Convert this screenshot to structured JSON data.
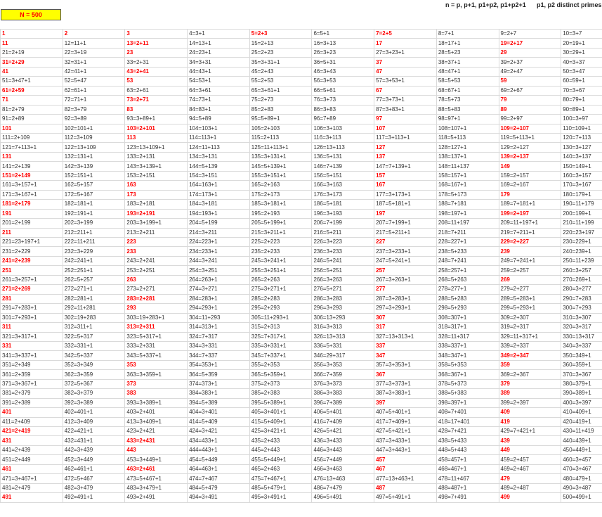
{
  "header": {
    "n_label": "N = 500",
    "formula": "n = p, p+1, p1+p2, p1+p2+1",
    "note": "p1, p2 distinct primes"
  },
  "colors": {
    "highlight": "#ff0000",
    "box_fill": "#ffff00"
  },
  "red_numbers": [
    1,
    2,
    3,
    5,
    7,
    11,
    13,
    17,
    19,
    23,
    29,
    31,
    37,
    41,
    43,
    47,
    53,
    59,
    61,
    67,
    71,
    73,
    79,
    83,
    89,
    97,
    101,
    103,
    107,
    109,
    113,
    127,
    131,
    137,
    139,
    149,
    151,
    157,
    163,
    167,
    173,
    179,
    181,
    191,
    193,
    197,
    199,
    211,
    223,
    227,
    229,
    233,
    239,
    241,
    251,
    257,
    263,
    269,
    271,
    277,
    281,
    283,
    293,
    307,
    311,
    313,
    317,
    331,
    337,
    347,
    349,
    353,
    359,
    367,
    373,
    379,
    383,
    389,
    397,
    401,
    409,
    419,
    421,
    431,
    433,
    439,
    443,
    449,
    457,
    461,
    463,
    467,
    479,
    487,
    491,
    499
  ],
  "table": {
    "rows": [
      [
        "1",
        "2",
        "3",
        "4=3+1",
        "5=2+3",
        "6=5+1",
        "7=2+5",
        "8=7+1",
        "9=2+7",
        "10=3+7"
      ],
      [
        "11",
        "12=11+1",
        "13=2+11",
        "14=13+1",
        "15=2+13",
        "16=3+13",
        "17",
        "18=17+1",
        "19=2+17",
        "20=19+1"
      ],
      [
        "21=2+19",
        "22=3+19",
        "23",
        "24=23+1",
        "25=2+23",
        "26=3+23",
        "27=3+23+1",
        "28=5+23",
        "29",
        "30=29+1"
      ],
      [
        "31=2+29",
        "32=31+1",
        "33=2+31",
        "34=3+31",
        "35=3+31+1",
        "36=5+31",
        "37",
        "38=37+1",
        "39=2+37",
        "40=3+37"
      ],
      [
        "41",
        "42=41+1",
        "43=2+41",
        "44=43+1",
        "45=2+43",
        "46=3+43",
        "47",
        "48=47+1",
        "49=2+47",
        "50=3+47"
      ],
      [
        "51=3+47+1",
        "52=5+47",
        "53",
        "54=53+1",
        "55=2+53",
        "56=3+53",
        "57=3+53+1",
        "58=5+53",
        "59",
        "60=59+1"
      ],
      [
        "61=2+59",
        "62=61+1",
        "63=2+61",
        "64=3+61",
        "65=3+61+1",
        "66=5+61",
        "67",
        "68=67+1",
        "69=2+67",
        "70=3+67"
      ],
      [
        "71",
        "72=71+1",
        "73=2+71",
        "74=73+1",
        "75=2+73",
        "76=3+73",
        "77=3+73+1",
        "78=5+73",
        "79",
        "80=79+1"
      ],
      [
        "81=2+79",
        "82=3+79",
        "83",
        "84=83+1",
        "85=2+83",
        "86=3+83",
        "87=3+83+1",
        "88=5+83",
        "89",
        "90=89+1"
      ],
      [
        "91=2+89",
        "92=3+89",
        "93=3+89+1",
        "94=5+89",
        "95=5+89+1",
        "96=7+89",
        "97",
        "98=97+1",
        "99=2+97",
        "100=3+97"
      ],
      [
        "101",
        "102=101+1",
        "103=2+101",
        "104=103+1",
        "105=2+103",
        "106=3+103",
        "107",
        "108=107+1",
        "109=2+107",
        "110=109+1"
      ],
      [
        "111=2+109",
        "112=3+109",
        "113",
        "114=113+1",
        "115=2+113",
        "116=3+113",
        "117=3+113+1",
        "118=5+113",
        "119=5+113+1",
        "120=7+113"
      ],
      [
        "121=7+113+1",
        "122=13+109",
        "123=13+109+1",
        "124=11+113",
        "125=11+113+1",
        "126=13+113",
        "127",
        "128=127+1",
        "129=2+127",
        "130=3+127"
      ],
      [
        "131",
        "132=131+1",
        "133=2+131",
        "134=3+131",
        "135=3+131+1",
        "136=5+131",
        "137",
        "138=137+1",
        "139=2+137",
        "140=3+137"
      ],
      [
        "141=2+139",
        "142=3+139",
        "143=3+139+1",
        "144=5+139",
        "145=5+139+1",
        "146=7+139",
        "147=7+139+1",
        "148=11+137",
        "149",
        "150=149+1"
      ],
      [
        "151=2+149",
        "152=151+1",
        "153=2+151",
        "154=3+151",
        "155=3+151+1",
        "156=5+151",
        "157",
        "158=157+1",
        "159=2+157",
        "160=3+157"
      ],
      [
        "161=3+157+1",
        "162=5+157",
        "163",
        "164=163+1",
        "165=2+163",
        "166=3+163",
        "167",
        "168=167+1",
        "169=2+167",
        "170=3+167"
      ],
      [
        "171=3+167+1",
        "172=5+167",
        "173",
        "174=173+1",
        "175=2+173",
        "176=3+173",
        "177=3+173+1",
        "178=5+173",
        "179",
        "180=179+1"
      ],
      [
        "181=2+179",
        "182=181+1",
        "183=2+181",
        "184=3+181",
        "185=3+181+1",
        "186=5+181",
        "187=5+181+1",
        "188=7+181",
        "189=7+181+1",
        "190=11+179"
      ],
      [
        "191",
        "192=191+1",
        "193=2+191",
        "194=193+1",
        "195=2+193",
        "196=3+193",
        "197",
        "198=197+1",
        "199=2+197",
        "200=199+1"
      ],
      [
        "201=2+199",
        "202=3+199",
        "203=3+199+1",
        "204=5+199",
        "205=5+199+1",
        "206=7+199",
        "207=7+199+1",
        "208=11+197",
        "209=11+197+1",
        "210=11+199"
      ],
      [
        "211",
        "212=211+1",
        "213=2+211",
        "214=3+211",
        "215=3+211+1",
        "216=5+211",
        "217=5+211+1",
        "218=7+211",
        "219=7+211+1",
        "220=23+197"
      ],
      [
        "221=23+197+1",
        "222=11+211",
        "223",
        "224=223+1",
        "225=2+223",
        "226=3+223",
        "227",
        "228=227+1",
        "229=2+227",
        "230=229+1"
      ],
      [
        "231=2+229",
        "232=3+229",
        "233",
        "234=233+1",
        "235=2+233",
        "236=3+233",
        "237=3+233+1",
        "238=5+233",
        "239",
        "240=239+1"
      ],
      [
        "241=2+239",
        "242=241+1",
        "243=2+241",
        "244=3+241",
        "245=3+241+1",
        "246=5+241",
        "247=5+241+1",
        "248=7+241",
        "249=7+241+1",
        "250=11+239"
      ],
      [
        "251",
        "252=251+1",
        "253=2+251",
        "254=3+251",
        "255=3+251+1",
        "256=5+251",
        "257",
        "258=257+1",
        "259=2+257",
        "260=3+257"
      ],
      [
        "261=3+257+1",
        "262=5+257",
        "263",
        "264=263+1",
        "265=2+263",
        "266=3+263",
        "267=3+263+1",
        "268=5+263",
        "269",
        "270=269+1"
      ],
      [
        "271=2+269",
        "272=271+1",
        "273=2+271",
        "274=3+271",
        "275=3+271+1",
        "276=5+271",
        "277",
        "278=277+1",
        "279=2+277",
        "280=3+277"
      ],
      [
        "281",
        "282=281+1",
        "283=2+281",
        "284=283+1",
        "285=2+283",
        "286=3+283",
        "287=3+283+1",
        "288=5+283",
        "289=5+283+1",
        "290=7+283"
      ],
      [
        "291=7+283+1",
        "292=11+281",
        "293",
        "294=293+1",
        "295=2+293",
        "296=3+293",
        "297=3+293+1",
        "298=5+293",
        "299=5+293+1",
        "300=7+293"
      ],
      [
        "301=7+293+1",
        "302=19+283",
        "303=19+283+1",
        "304=11+293",
        "305=11+293+1",
        "306=13+293",
        "307",
        "308=307+1",
        "309=2+307",
        "310=3+307"
      ],
      [
        "311",
        "312=311+1",
        "313=2+311",
        "314=313+1",
        "315=2+313",
        "316=3+313",
        "317",
        "318=317+1",
        "319=2+317",
        "320=3+317"
      ],
      [
        "321=3+317+1",
        "322=5+317",
        "323=5+317+1",
        "324=7+317",
        "325=7+317+1",
        "326=13+313",
        "327=13+313+1",
        "328=11+317",
        "329=11+317+1",
        "330=13+317"
      ],
      [
        "331",
        "332=331+1",
        "333=2+331",
        "334=3+331",
        "335=3+331+1",
        "336=5+331",
        "337",
        "338=337+1",
        "339=2+337",
        "340=3+337"
      ],
      [
        "341=3+337+1",
        "342=5+337",
        "343=5+337+1",
        "344=7+337",
        "345=7+337+1",
        "346=29+317",
        "347",
        "348=347+1",
        "349=2+347",
        "350=349+1"
      ],
      [
        "351=2+349",
        "352=3+349",
        "353",
        "354=353+1",
        "355=2+353",
        "356=3+353",
        "357=3+353+1",
        "358=5+353",
        "359",
        "360=359+1"
      ],
      [
        "361=2+359",
        "362=3+359",
        "363=3+359+1",
        "364=5+359",
        "365=5+359+1",
        "366=7+359",
        "367",
        "368=367+1",
        "369=2+367",
        "370=3+367"
      ],
      [
        "371=3+367+1",
        "372=5+367",
        "373",
        "374=373+1",
        "375=2+373",
        "376=3+373",
        "377=3+373+1",
        "378=5+373",
        "379",
        "380=379+1"
      ],
      [
        "381=2+379",
        "382=3+379",
        "383",
        "384=383+1",
        "385=2+383",
        "386=3+383",
        "387=3+383+1",
        "388=5+383",
        "389",
        "390=389+1"
      ],
      [
        "391=2+389",
        "392=3+389",
        "393=3+389+1",
        "394=5+389",
        "395=5+389+1",
        "396=7+389",
        "397",
        "398=397+1",
        "399=2+397",
        "400=3+397"
      ],
      [
        "401",
        "402=401+1",
        "403=2+401",
        "404=3+401",
        "405=3+401+1",
        "406=5+401",
        "407=5+401+1",
        "408=7+401",
        "409",
        "410=409+1"
      ],
      [
        "411=2+409",
        "412=3+409",
        "413=3+409+1",
        "414=5+409",
        "415=5+409+1",
        "416=7+409",
        "417=7+409+1",
        "418=17+401",
        "419",
        "420=419+1"
      ],
      [
        "421=2+419",
        "422=421+1",
        "423=2+421",
        "424=3+421",
        "425=3+421+1",
        "426=5+421",
        "427=5+421+1",
        "428=7+421",
        "429=7+421+1",
        "430=11+419"
      ],
      [
        "431",
        "432=431+1",
        "433=2+431",
        "434=433+1",
        "435=2+433",
        "436=3+433",
        "437=3+433+1",
        "438=5+433",
        "439",
        "440=439+1"
      ],
      [
        "441=2+439",
        "442=3+439",
        "443",
        "444=443+1",
        "445=2+443",
        "446=3+443",
        "447=3+443+1",
        "448=5+443",
        "449",
        "450=449+1"
      ],
      [
        "451=2+449",
        "452=3+449",
        "453=3+449+1",
        "454=5+449",
        "455=5+449+1",
        "456=7+449",
        "457",
        "458=457+1",
        "459=2+457",
        "460=3+457"
      ],
      [
        "461",
        "462=461+1",
        "463=2+461",
        "464=463+1",
        "465=2+463",
        "466=3+463",
        "467",
        "468=467+1",
        "469=2+467",
        "470=3+467"
      ],
      [
        "471=3+467+1",
        "472=5+467",
        "473=5+467+1",
        "474=7+467",
        "475=7+467+1",
        "476=13+463",
        "477=13+463+1",
        "478=11+467",
        "479",
        "480=479+1"
      ],
      [
        "481=2+479",
        "482=3+479",
        "483=3+479+1",
        "484=5+479",
        "485=5+479+1",
        "486=7+479",
        "487",
        "488=487+1",
        "489=2+487",
        "490=3+487"
      ],
      [
        "491",
        "492=491+1",
        "493=2+491",
        "494=3+491",
        "495=3+491+1",
        "496=5+491",
        "497=5+491+1",
        "498=7+491",
        "499",
        "500=499+1"
      ]
    ]
  }
}
